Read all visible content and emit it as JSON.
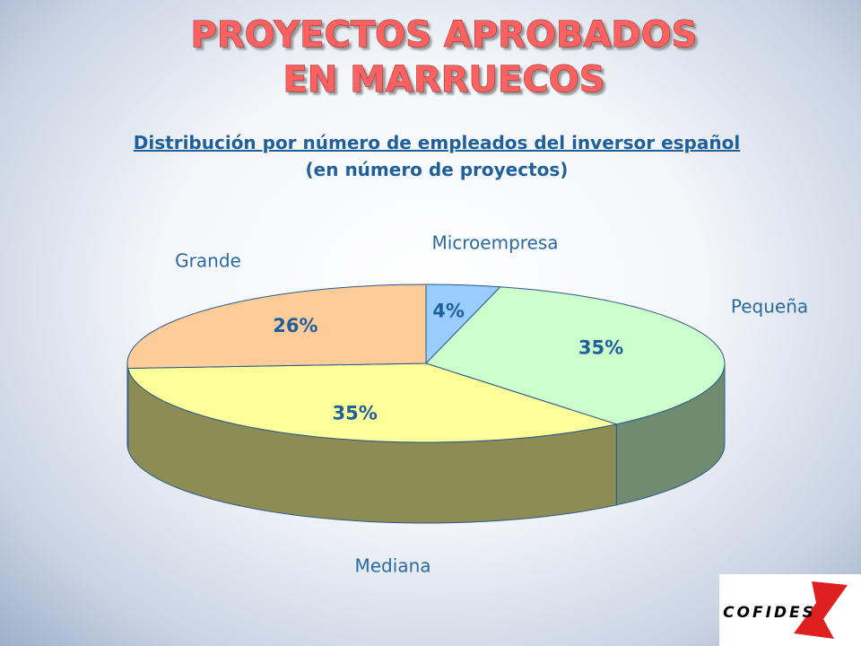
{
  "chart_data": {
    "type": "pie",
    "title": "PROYECTOS APROBADOS",
    "title_line2": "EN MARRUECOS",
    "subtitle": "Distribución por número de empleados del inversor español",
    "subtitle_line2": "(en número de proyectos)",
    "categories": [
      "Microempresa",
      "Pequeña",
      "Mediana",
      "Grande"
    ],
    "values": [
      4,
      35,
      35,
      26
    ],
    "value_labels": [
      "4%",
      "35%",
      "35%",
      "26%"
    ],
    "colors": [
      "#99ccff",
      "#ccffcc",
      "#ffff99",
      "#ffcc99"
    ]
  },
  "logo": "COFIDES"
}
